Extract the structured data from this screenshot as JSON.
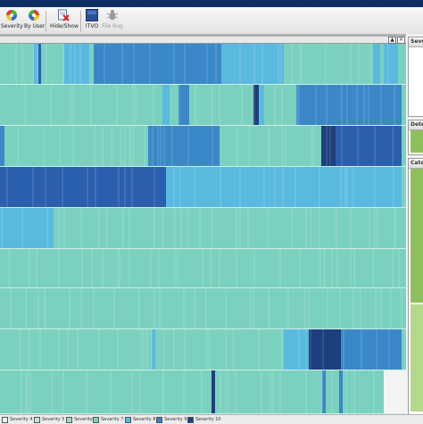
{
  "toolbar": {
    "severity_label": "Severity",
    "by_user_label": "By User",
    "hide_show_label": "Hide/Show",
    "itvo_label": "ITVO",
    "file_bug_label": "File Bug"
  },
  "view": {
    "minimize_glyph": "▲",
    "close_glyph": "×"
  },
  "side_panels": {
    "top_title": "Seve",
    "middle_title": "Dete",
    "bottom_title": "Cate"
  },
  "legend": {
    "items": [
      {
        "label": "Severity 4",
        "color": "#e6f4f1"
      },
      {
        "label": "Severity 5",
        "color": "#c5e8d8"
      },
      {
        "label": "Severity 6",
        "color": "#9bdcc9"
      },
      {
        "label": "Severity 7",
        "color": "#7fd3c0"
      },
      {
        "label": "Severity 8",
        "color": "#5ab9df"
      },
      {
        "label": "Severity 9",
        "color": "#3a7fc6"
      },
      {
        "label": "Severity 10",
        "color": "#1c3f7e"
      }
    ]
  },
  "colors": {
    "base": "#7bd1bf",
    "light": "#5ab9df",
    "mid": "#3a88c8",
    "dark": "#2a5fae",
    "darkest": "#1c3f7e",
    "pale": "#f2f4f3",
    "side_green": "#8fbf5a"
  }
}
